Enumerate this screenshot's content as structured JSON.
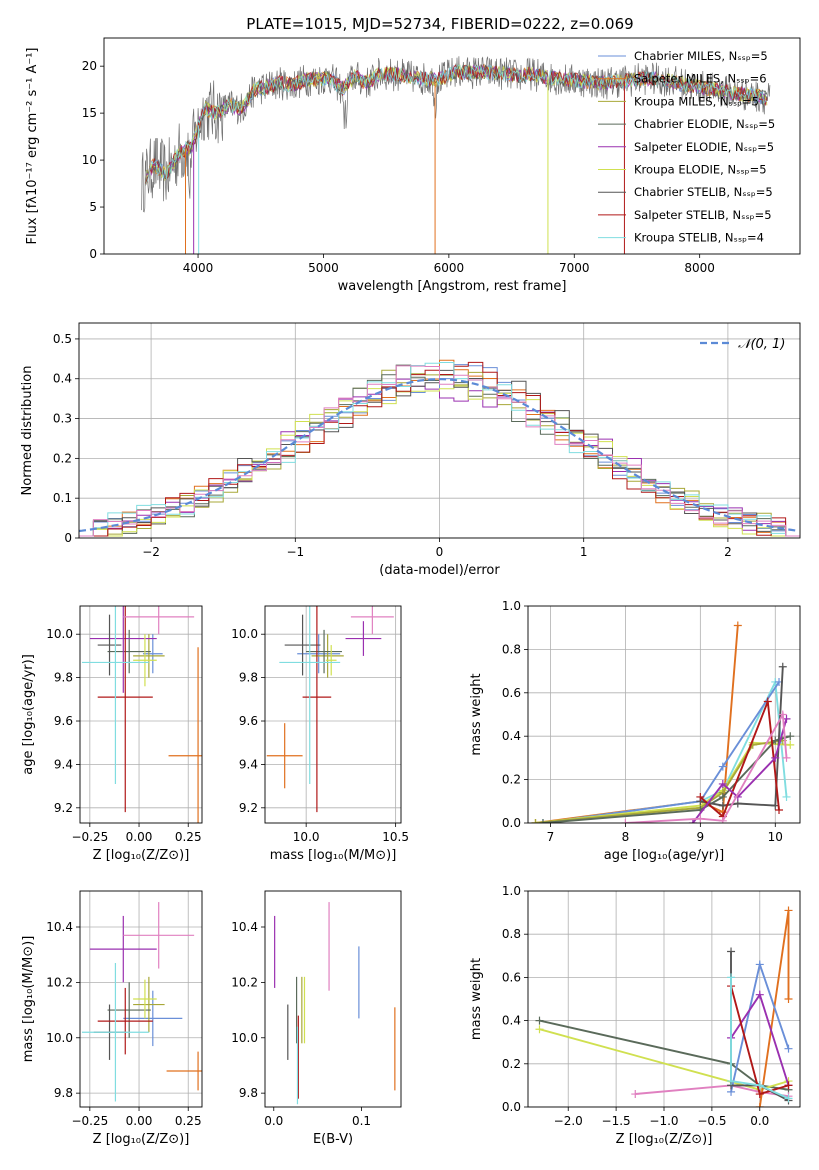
{
  "figure": {
    "title": "PLATE=1015, MJD=52734, FIBERID=0222, z=0.069"
  },
  "colors": [
    "#6a8fd8",
    "#e0701f",
    "#a8a838",
    "#5a6a5a",
    "#9a30b0",
    "#d0e050",
    "#555555",
    "#b01818",
    "#80dde0",
    "#e080c0"
  ],
  "chart_data": [
    {
      "id": "spectrum",
      "type": "line",
      "xlabel": "wavelength [Angstrom, rest frame]",
      "ylabel": "Flux [fλ10⁻¹⁷ erg cm⁻² s⁻¹ A⁻¹]",
      "xlim": [
        3250,
        8800
      ],
      "ylim": [
        0,
        23
      ],
      "xticks": [
        4000,
        5000,
        6000,
        7000,
        8000
      ],
      "yticks": [
        0,
        5,
        10,
        15,
        20
      ],
      "grid": false,
      "legend_position": "top-right",
      "legend": [
        "Chabrier MILES, Nₛₛₚ=5",
        "Salpeter MILES, Nₛₛₚ=6",
        "Kroupa MILES, Nₛₛₚ=5",
        "Chabrier ELODIE, Nₛₛₚ=5",
        "Salpeter ELODIE, Nₛₛₚ=5",
        "Kroupa ELODIE, Nₛₛₚ=5",
        "Chabrier STELIB, Nₛₛₚ=5",
        "Salpeter STELIB, Nₛₛₚ=5",
        "Kroupa STELIB, Nₛₛₚ=4"
      ],
      "x": [
        3550,
        3650,
        3750,
        3850,
        3950,
        4050,
        4150,
        4250,
        4350,
        4450,
        4550,
        4650,
        4750,
        4850,
        4950,
        5050,
        5150,
        5250,
        5350,
        5450,
        5550,
        5650,
        5750,
        5850,
        5950,
        6050,
        6150,
        6250,
        6350,
        6450,
        6550,
        6650,
        6750,
        6850,
        6950,
        7050,
        7150,
        7250,
        7350,
        7450,
        7550,
        7650,
        7750,
        7850,
        7950,
        8050,
        8150,
        8250,
        8350,
        8450,
        8550
      ],
      "y": [
        7.5,
        9.5,
        8.5,
        10.8,
        11.5,
        15.5,
        15,
        15.8,
        15.5,
        17.5,
        17.8,
        18.2,
        18,
        18.5,
        18.6,
        18.8,
        17.5,
        18.9,
        18.2,
        19.2,
        19.1,
        19,
        18.7,
        18.6,
        18.7,
        19.4,
        19.3,
        19.4,
        19.3,
        19.2,
        19,
        19.2,
        18.9,
        18.7,
        18.5,
        18.5,
        18.3,
        18.2,
        18.4,
        18.5,
        18.7,
        18.6,
        18.5,
        18.1,
        17.9,
        17.7,
        17.4,
        17.2,
        17,
        16.8,
        16.6
      ]
    },
    {
      "id": "residuals",
      "type": "step",
      "xlabel": "(data-model)/error",
      "ylabel": "Normed distribution",
      "xlim": [
        -2.5,
        2.5
      ],
      "ylim": [
        0,
        0.54
      ],
      "xticks": [
        -2,
        -1,
        0,
        1,
        2
      ],
      "yticks": [
        0,
        0.1,
        0.2,
        0.3,
        0.4,
        0.5
      ],
      "xtick_labels": [
        "−2",
        "−1",
        "0",
        "1",
        "2"
      ],
      "grid": true,
      "legend_position": "top-right",
      "legend": [
        "𝒩(0, 1)"
      ]
    },
    {
      "id": "age-vs-Z",
      "type": "scatter",
      "xlabel": "Z [log₁₀(Z/Z⊙)]",
      "ylabel": "age  [log₁₀(age/yr)]",
      "xlim": [
        -0.3,
        0.32
      ],
      "ylim": [
        9.13,
        10.13
      ],
      "xticks": [
        -0.25,
        0,
        0.25
      ],
      "yticks": [
        9.2,
        9.4,
        9.6,
        9.8,
        10.0
      ],
      "xtick_labels": [
        "−0.25",
        "0.00",
        "0.25"
      ],
      "ytick_labels": [
        "9.2",
        "9.4",
        "9.6",
        "9.8",
        "10.0"
      ],
      "grid": true,
      "points": [
        {
          "c": 0,
          "x": 0.07,
          "y": 9.91,
          "xe": 0.05,
          "ye": 0.09
        },
        {
          "c": 1,
          "x": 0.3,
          "y": 9.44,
          "xe": 0.15,
          "ye": 0.5
        },
        {
          "c": 2,
          "x": 0.05,
          "y": 9.9,
          "xe": 0.08,
          "ye": 0.1
        },
        {
          "c": 3,
          "x": -0.05,
          "y": 9.92,
          "xe": 0.11,
          "ye": 0.1
        },
        {
          "c": 4,
          "x": -0.08,
          "y": 9.98,
          "xe": 0.17,
          "ye": 0.25
        },
        {
          "c": 5,
          "x": 0.03,
          "y": 9.88,
          "xe": 0.06,
          "ye": 0.12
        },
        {
          "c": 6,
          "x": -0.15,
          "y": 9.95,
          "xe": 0.06,
          "ye": 0.14
        },
        {
          "c": 7,
          "x": -0.07,
          "y": 9.71,
          "xe": 0.14,
          "ye": 0.53
        },
        {
          "c": 8,
          "x": -0.12,
          "y": 9.87,
          "xe": 0.17,
          "ye": 0.56
        },
        {
          "c": 9,
          "x": 0.1,
          "y": 10.08,
          "xe": 0.18,
          "ye": 0.08
        }
      ]
    },
    {
      "id": "age-vs-mass",
      "type": "scatter",
      "xlabel": "mass [log₁₀(M/M⊙)]",
      "ylabel": "",
      "xlim": [
        9.77,
        10.53
      ],
      "ylim": [
        9.13,
        10.13
      ],
      "xticks": [
        10.0,
        10.5
      ],
      "yticks": [
        9.2,
        9.4,
        9.6,
        9.8,
        10.0
      ],
      "xtick_labels": [
        "10.0",
        "10.5"
      ],
      "ytick_labels": [
        "9.2",
        "9.4",
        "9.6",
        "9.8",
        "10.0"
      ],
      "grid": true,
      "points": [
        {
          "c": 0,
          "x": 10.07,
          "y": 9.91,
          "xe": 0.12,
          "ye": 0.09
        },
        {
          "c": 1,
          "x": 9.88,
          "y": 9.44,
          "xe": 0.1,
          "ye": 0.15
        },
        {
          "c": 2,
          "x": 10.12,
          "y": 9.9,
          "xe": 0.09,
          "ye": 0.1
        },
        {
          "c": 3,
          "x": 10.1,
          "y": 9.92,
          "xe": 0.1,
          "ye": 0.1
        },
        {
          "c": 4,
          "x": 10.32,
          "y": 9.98,
          "xe": 0.1,
          "ye": 0.08
        },
        {
          "c": 5,
          "x": 10.14,
          "y": 9.88,
          "xe": 0.03,
          "ye": 0.07
        },
        {
          "c": 6,
          "x": 9.98,
          "y": 9.95,
          "xe": 0.1,
          "ye": 0.14
        },
        {
          "c": 7,
          "x": 10.06,
          "y": 9.71,
          "xe": 0.08,
          "ye": 0.53
        },
        {
          "c": 8,
          "x": 10.02,
          "y": 9.87,
          "xe": 0.17,
          "ye": 0.56
        },
        {
          "c": 9,
          "x": 10.37,
          "y": 10.08,
          "xe": 0.12,
          "ye": 0.08
        }
      ]
    },
    {
      "id": "weight-vs-age",
      "type": "line",
      "xlabel": "age  [log₁₀(age/yr)]",
      "ylabel": "mass weight",
      "xlim": [
        6.7,
        10.33
      ],
      "ylim": [
        0,
        1.0
      ],
      "xticks": [
        7,
        8,
        9,
        10
      ],
      "yticks": [
        0,
        0.2,
        0.4,
        0.6,
        0.8,
        1.0
      ],
      "xtick_labels": [
        "7",
        "8",
        "9",
        "10"
      ],
      "ytick_labels": [
        "0.0",
        "0.2",
        "0.4",
        "0.6",
        "0.8",
        "1.0"
      ],
      "grid": true,
      "series": [
        {
          "c": 1,
          "x": [
            6.8,
            9.0,
            9.3,
            9.5
          ],
          "y": [
            0,
            0.1,
            0.05,
            0.91
          ]
        },
        {
          "c": 8,
          "x": [
            6.9,
            9.0,
            9.3,
            10.0,
            10.15
          ],
          "y": [
            0,
            0.1,
            0.15,
            0.65,
            0.12
          ]
        },
        {
          "c": 0,
          "x": [
            6.9,
            9.0,
            9.3,
            10.05
          ],
          "y": [
            0,
            0.1,
            0.26,
            0.65
          ]
        },
        {
          "c": 5,
          "x": [
            6.8,
            9.0,
            9.3,
            9.7,
            10.2
          ],
          "y": [
            0,
            0.08,
            0.15,
            0.37,
            0.36
          ]
        },
        {
          "c": 2,
          "x": [
            6.8,
            9.0,
            9.3,
            9.7,
            10.1
          ],
          "y": [
            0,
            0.07,
            0.14,
            0.36,
            0.38
          ]
        },
        {
          "c": 3,
          "x": [
            6.9,
            9.0,
            9.3,
            10.0,
            10.2
          ],
          "y": [
            0,
            0.06,
            0.12,
            0.38,
            0.4
          ]
        },
        {
          "c": 6,
          "x": [
            9.0,
            9.3,
            9.5,
            10.0,
            10.1
          ],
          "y": [
            0.1,
            0.08,
            0.09,
            0.08,
            0.72
          ]
        },
        {
          "c": 7,
          "x": [
            9.0,
            9.3,
            9.9,
            10.05
          ],
          "y": [
            0.12,
            0.03,
            0.56,
            0.06
          ]
        },
        {
          "c": 4,
          "x": [
            8.9,
            9.3,
            9.5,
            10.0,
            10.15
          ],
          "y": [
            0,
            0.18,
            0.12,
            0.3,
            0.48
          ]
        },
        {
          "c": 9,
          "x": [
            8.0,
            9.0,
            9.3,
            10.1,
            10.15
          ],
          "y": [
            0,
            0.02,
            0.01,
            0.5,
            0.3
          ]
        }
      ]
    },
    {
      "id": "mass-vs-Z",
      "type": "scatter",
      "xlabel": "Z [log₁₀(Z/Z⊙)]",
      "ylabel": "mass [log₁₀(M/M⊙)]",
      "xlim": [
        -0.3,
        0.32
      ],
      "ylim": [
        9.75,
        10.53
      ],
      "xticks": [
        -0.25,
        0,
        0.25
      ],
      "yticks": [
        9.8,
        10.0,
        10.2,
        10.4
      ],
      "xtick_labels": [
        "−0.25",
        "0.00",
        "0.25"
      ],
      "ytick_labels": [
        "9.8",
        "10.0",
        "10.2",
        "10.4"
      ],
      "grid": true,
      "points": [
        {
          "c": 0,
          "x": 0.07,
          "y": 10.07,
          "xe": 0.15,
          "ye": 0.1
        },
        {
          "c": 1,
          "x": 0.3,
          "y": 9.88,
          "xe": 0.16,
          "ye": 0.07
        },
        {
          "c": 2,
          "x": 0.05,
          "y": 10.12,
          "xe": 0.08,
          "ye": 0.1
        },
        {
          "c": 3,
          "x": -0.05,
          "y": 10.1,
          "xe": 0.11,
          "ye": 0.1
        },
        {
          "c": 4,
          "x": -0.08,
          "y": 10.32,
          "xe": 0.17,
          "ye": 0.12
        },
        {
          "c": 5,
          "x": 0.03,
          "y": 10.14,
          "xe": 0.06,
          "ye": 0.07
        },
        {
          "c": 6,
          "x": -0.15,
          "y": 10.02,
          "xe": 0.08,
          "ye": 0.1
        },
        {
          "c": 7,
          "x": -0.07,
          "y": 10.06,
          "xe": 0.14,
          "ye": 0.12
        },
        {
          "c": 8,
          "x": -0.12,
          "y": 10.02,
          "xe": 0.17,
          "ye": 0.25
        },
        {
          "c": 9,
          "x": 0.1,
          "y": 10.37,
          "xe": 0.18,
          "ye": 0.12
        }
      ]
    },
    {
      "id": "mass-vs-ebv",
      "type": "scatter",
      "xlabel": "E(B-V)",
      "ylabel": "",
      "xlim": [
        -0.01,
        0.145
      ],
      "ylim": [
        9.75,
        10.53
      ],
      "xticks": [
        0,
        0.1
      ],
      "yticks": [
        9.8,
        10.0,
        10.2,
        10.4
      ],
      "xtick_labels": [
        "0.0",
        "0.1"
      ],
      "ytick_labels": [
        "9.8",
        "10.0",
        "10.2",
        "10.4"
      ],
      "grid": false,
      "points": [
        {
          "c": 0,
          "x": 0.097,
          "y": 10.2,
          "xe": 0,
          "ye": 0.13
        },
        {
          "c": 1,
          "x": 0.138,
          "y": 9.96,
          "xe": 0,
          "ye": 0.15
        },
        {
          "c": 2,
          "x": 0.032,
          "y": 10.1,
          "xe": 0,
          "ye": 0.12
        },
        {
          "c": 3,
          "x": 0.026,
          "y": 10.1,
          "xe": 0,
          "ye": 0.12
        },
        {
          "c": 4,
          "x": 0.001,
          "y": 10.31,
          "xe": 0,
          "ye": 0.13
        },
        {
          "c": 5,
          "x": 0.035,
          "y": 10.1,
          "xe": 0,
          "ye": 0.12
        },
        {
          "c": 6,
          "x": 0.016,
          "y": 10.02,
          "xe": 0,
          "ye": 0.1
        },
        {
          "c": 7,
          "x": 0.028,
          "y": 9.93,
          "xe": 0,
          "ye": 0.15
        },
        {
          "c": 8,
          "x": 0.027,
          "y": 9.9,
          "xe": 0,
          "ye": 0.14
        },
        {
          "c": 9,
          "x": 0.063,
          "y": 10.33,
          "xe": 0,
          "ye": 0.16
        }
      ]
    },
    {
      "id": "weight-vs-Z",
      "type": "line",
      "xlabel": "Z [log₁₀(Z/Z⊙)]",
      "ylabel": "mass weight",
      "xlim": [
        -2.42,
        0.42
      ],
      "ylim": [
        0,
        1.0
      ],
      "xticks": [
        -2.0,
        -1.5,
        -1.0,
        -0.5,
        0.0
      ],
      "yticks": [
        0,
        0.2,
        0.4,
        0.6,
        0.8,
        1.0
      ],
      "xtick_labels": [
        "−2.0",
        "−1.5",
        "−1.0",
        "−0.5",
        "0.0"
      ],
      "ytick_labels": [
        "0.0",
        "0.2",
        "0.4",
        "0.6",
        "0.8",
        "1.0"
      ],
      "grid": true,
      "series": [
        {
          "c": 3,
          "x": [
            -2.3,
            -0.3,
            0,
            0.3
          ],
          "y": [
            0.4,
            0.2,
            0.1,
            0.08
          ]
        },
        {
          "c": 5,
          "x": [
            -2.3,
            0,
            0.3
          ],
          "y": [
            0.36,
            0.08,
            0.12
          ]
        },
        {
          "c": 9,
          "x": [
            -1.3,
            -0.3,
            0,
            0.3
          ],
          "y": [
            0.06,
            0.1,
            0.07,
            0.05
          ]
        },
        {
          "c": 1,
          "x": [
            0,
            0.3,
            0.3
          ],
          "y": [
            0,
            0.91,
            0.5
          ]
        },
        {
          "c": 0,
          "x": [
            -0.3,
            0,
            0.3
          ],
          "y": [
            0.07,
            0.66,
            0.27
          ]
        },
        {
          "c": 4,
          "x": [
            -0.3,
            0,
            0.3
          ],
          "y": [
            0.32,
            0.52,
            0.1
          ]
        },
        {
          "c": 6,
          "x": [
            -0.3,
            -0.3,
            0,
            0.3
          ],
          "y": [
            0.72,
            0.1,
            0.1,
            0.03
          ]
        },
        {
          "c": 7,
          "x": [
            -0.3,
            0,
            0.3
          ],
          "y": [
            0.56,
            0.06,
            0.1
          ]
        },
        {
          "c": 8,
          "x": [
            -0.3,
            -0.3,
            0,
            0.3
          ],
          "y": [
            0.6,
            0.12,
            0.1,
            0.04
          ]
        }
      ]
    }
  ]
}
